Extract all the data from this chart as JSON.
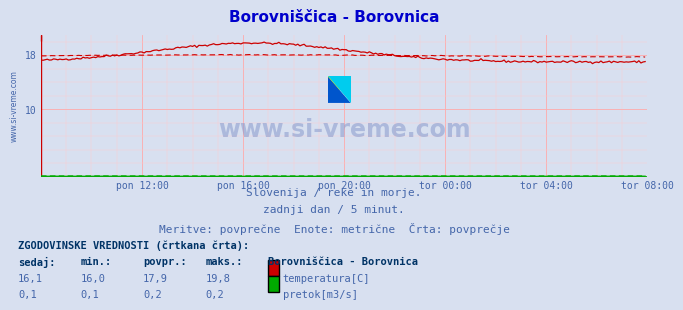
{
  "title": "Borovniščica - Borovnica",
  "title_color": "#0000cc",
  "bg_color": "#d8e0f0",
  "plot_bg_color": "#d8e0f0",
  "grid_color_major": "#ffaaaa",
  "grid_color_minor": "#ffcccc",
  "xlabel_texts": [
    "pon 12:00",
    "pon 16:00",
    "pon 20:00",
    "tor 00:00",
    "tor 04:00",
    "tor 08:00"
  ],
  "ylim": [
    0,
    21
  ],
  "xlim": [
    0,
    288
  ],
  "x_tick_positions": [
    48,
    96,
    144,
    192,
    240,
    288
  ],
  "y_tick_vals": [
    10,
    18
  ],
  "watermark_text": "www.si-vreme.com",
  "watermark_color": "#8899cc",
  "subtitle1": "Slovenija / reke in morje.",
  "subtitle2": "zadnji dan / 5 minut.",
  "subtitle3": "Meritve: povprečne  Enote: metrične  Črta: povprečje",
  "subtitle_color": "#4466aa",
  "legend_title": "ZGODOVINSKE VREDNOSTI (črtkana črta):",
  "legend_headers": [
    "sedaj:",
    "min.:",
    "povpr.:",
    "maks.:"
  ],
  "legend_row1": [
    "16,1",
    "16,0",
    "17,9",
    "19,8"
  ],
  "legend_row2": [
    "0,1",
    "0,1",
    "0,2",
    "0,2"
  ],
  "legend_station": "Borovniščica - Borovnica",
  "legend_label1": "temperatura[C]",
  "legend_label2": "pretok[m3/s]",
  "legend_color1": "#cc0000",
  "legend_color2": "#00aa00",
  "temp_color": "#cc0000",
  "flow_color": "#00aa00",
  "axis_line_color": "#cc0000",
  "x_axis_color": "#00aa00",
  "tick_color": "#4466aa",
  "side_text_color": "#4466aa",
  "logo_yellow": "#ffff00",
  "logo_blue": "#0055cc",
  "logo_cyan": "#00ccee"
}
